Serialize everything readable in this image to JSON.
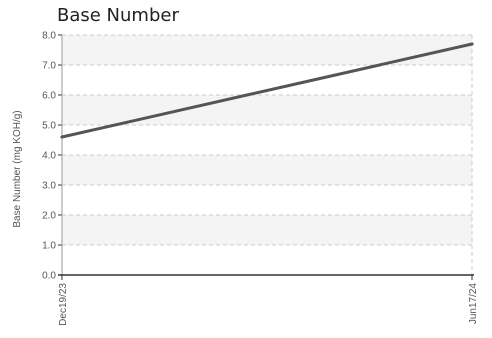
{
  "chart_data": {
    "type": "line",
    "title": "Base Number",
    "ylabel": "Base Number (mg KOH/g)",
    "xlabel": "",
    "x": [
      "Dec19/23",
      "Jun17/24"
    ],
    "series": [
      {
        "values": [
          4.6,
          7.7
        ]
      }
    ],
    "ylim": [
      0,
      8
    ],
    "yticks": [
      "0.0",
      "1.0",
      "2.0",
      "3.0",
      "4.0",
      "5.0",
      "6.0",
      "7.0",
      "8.0"
    ],
    "grid": true,
    "legend": "none",
    "colors": {
      "line": "#555555",
      "band": "#f4f4f4",
      "grid": "#cccccc",
      "axis": "#333333"
    }
  }
}
